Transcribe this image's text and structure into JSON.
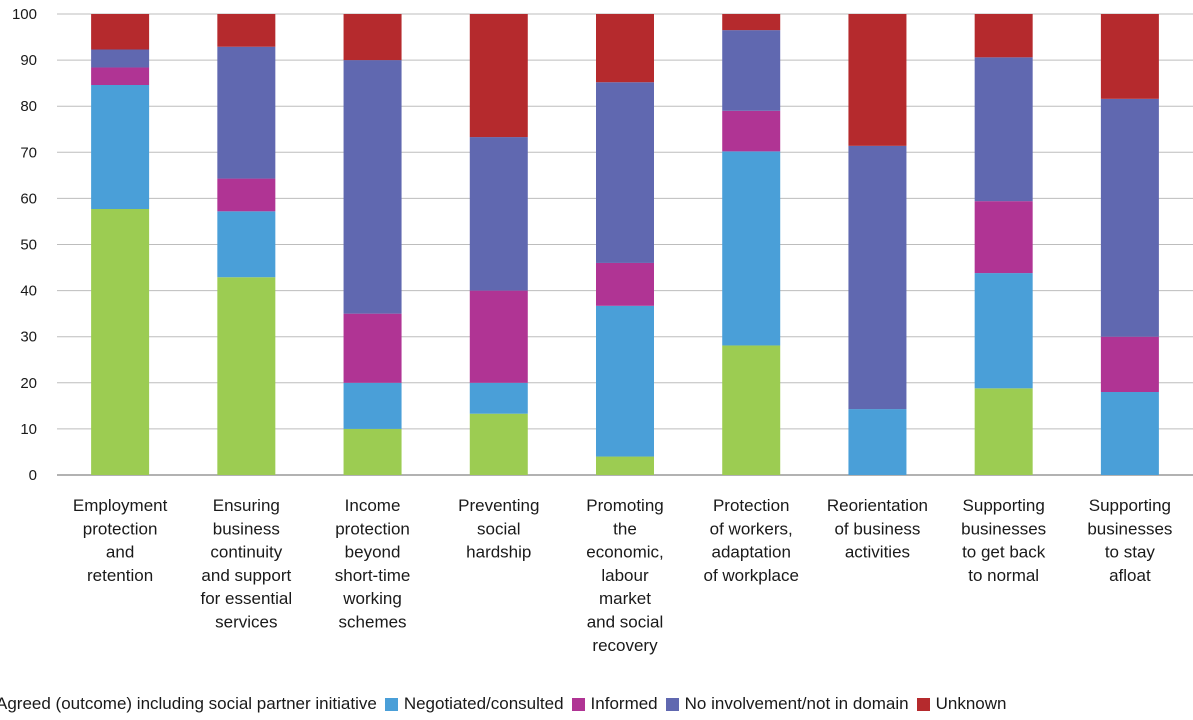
{
  "chart_data": {
    "type": "bar",
    "stacked": true,
    "ylim": [
      0,
      100
    ],
    "yticks": [
      0,
      10,
      20,
      30,
      40,
      50,
      60,
      70,
      80,
      90,
      100
    ],
    "grid": true,
    "legend_position": "bottom",
    "categories": [
      [
        "Employment",
        "protection",
        "and",
        "retention"
      ],
      [
        "Ensuring",
        "business",
        "continuity",
        "and support",
        "for essential",
        "services"
      ],
      [
        "Income",
        "protection",
        "beyond",
        "short-time",
        "working",
        "schemes"
      ],
      [
        "Preventing",
        "social",
        "hardship"
      ],
      [
        "Promoting",
        "the",
        "economic,",
        "labour",
        "market",
        "and social",
        "recovery"
      ],
      [
        "Protection",
        "of workers,",
        "adaptation",
        "of workplace"
      ],
      [
        "Reorientation",
        "of business",
        "activities"
      ],
      [
        "Supporting",
        "businesses",
        "to get back",
        "to normal"
      ],
      [
        "Supporting",
        "businesses",
        "to stay",
        "afloat"
      ]
    ],
    "series": [
      {
        "name": "Agreed (outcome) including social partner initiative",
        "color": "#9ccc52",
        "values": [
          57.7,
          42.9,
          10.0,
          13.3,
          4.0,
          28.1,
          0.0,
          18.8,
          0.0
        ]
      },
      {
        "name": "Negotiated/consulted",
        "color": "#4a9fd8",
        "values": [
          26.9,
          14.3,
          10.0,
          6.7,
          32.7,
          42.1,
          14.3,
          25.0,
          18.0
        ]
      },
      {
        "name": "Informed",
        "color": "#b03494",
        "values": [
          3.8,
          7.1,
          15.0,
          20.0,
          9.3,
          8.8,
          0.0,
          15.6,
          12.0
        ]
      },
      {
        "name": "No involvement/not in domain",
        "color": "#6068b0",
        "values": [
          3.9,
          28.6,
          55.0,
          33.3,
          39.2,
          17.5,
          57.1,
          31.2,
          51.6
        ]
      },
      {
        "name": "Unknown",
        "color": "#b52a2d",
        "values": [
          7.7,
          7.1,
          10.0,
          26.7,
          14.8,
          3.5,
          28.6,
          9.4,
          18.4
        ]
      }
    ]
  },
  "legend": {
    "labels": [
      "Agreed (outcome) including social partner initiative",
      "Negotiated/consulted",
      "Informed",
      "No involvement/not in domain",
      "Unknown"
    ]
  }
}
